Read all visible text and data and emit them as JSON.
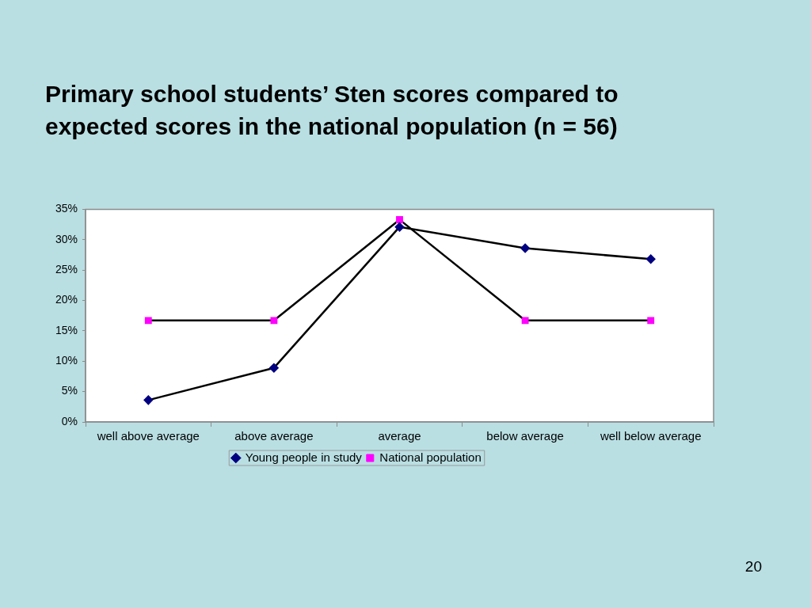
{
  "chart_data": {
    "type": "line",
    "title": "Primary school students’ Sten scores compared to expected scores in the national population (n = 56)",
    "categories": [
      "well above average",
      "above average",
      "average",
      "below average",
      "well below average"
    ],
    "series": [
      {
        "name": "Young people in study",
        "color": "#000080",
        "marker": "diamond",
        "values": [
          3.6,
          8.9,
          32.1,
          28.6,
          26.8
        ]
      },
      {
        "name": "National population",
        "color": "#ff00ff",
        "marker": "square",
        "values": [
          16.7,
          16.7,
          33.3,
          16.7,
          16.7
        ]
      }
    ],
    "ylim": [
      0,
      35
    ],
    "yticks": [
      {
        "value": 0,
        "label": "0%"
      },
      {
        "value": 5,
        "label": "5%"
      },
      {
        "value": 10,
        "label": "10%"
      },
      {
        "value": 15,
        "label": "15%"
      },
      {
        "value": 20,
        "label": "20%"
      },
      {
        "value": 25,
        "label": "25%"
      },
      {
        "value": 30,
        "label": "30%"
      },
      {
        "value": 35,
        "label": "35%"
      }
    ],
    "grid": false,
    "legend": "bottom",
    "line_style": "solid",
    "annotations": [
      "20"
    ]
  }
}
